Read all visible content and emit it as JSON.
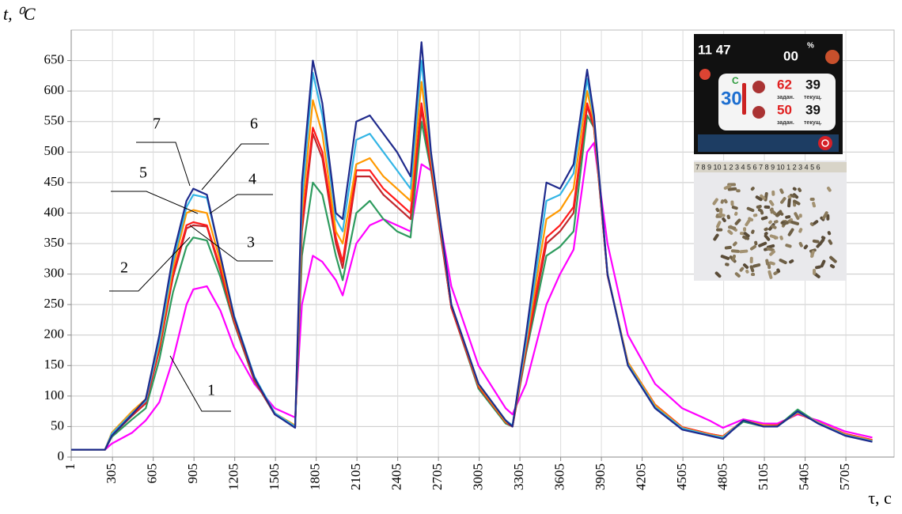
{
  "chart_data": {
    "type": "line",
    "y_label": "t, ⁰C",
    "x_label": "τ, c",
    "x": [
      1,
      250,
      300,
      450,
      550,
      650,
      750,
      850,
      900,
      1000,
      1100,
      1200,
      1350,
      1500,
      1650,
      1700,
      1780,
      1850,
      1950,
      2000,
      2100,
      2200,
      2300,
      2400,
      2500,
      2580,
      2650,
      2800,
      3000,
      3200,
      3250,
      3350,
      3500,
      3600,
      3700,
      3800,
      3850,
      3950,
      4100,
      4300,
      4500,
      4700,
      4800,
      4950,
      5100,
      5200,
      5350,
      5500,
      5700,
      5900
    ],
    "xlim": [
      1,
      6060
    ],
    "xticks": [
      1,
      305,
      605,
      905,
      1205,
      1505,
      1805,
      2105,
      2405,
      2705,
      3005,
      3305,
      3605,
      3905,
      4205,
      4505,
      4805,
      5105,
      5405,
      5705
    ],
    "ylim": [
      0,
      700
    ],
    "yticks": [
      0,
      50,
      100,
      150,
      200,
      250,
      300,
      350,
      400,
      450,
      500,
      550,
      600,
      650
    ],
    "grid": true,
    "series": [
      {
        "name": "1",
        "color": "#ff00ff",
        "values": [
          12,
          12,
          22,
          40,
          60,
          90,
          160,
          250,
          275,
          280,
          240,
          180,
          120,
          80,
          65,
          250,
          330,
          320,
          290,
          265,
          350,
          380,
          390,
          380,
          370,
          480,
          470,
          280,
          150,
          80,
          70,
          120,
          250,
          300,
          340,
          500,
          515,
          350,
          200,
          120,
          80,
          60,
          48,
          62,
          55,
          55,
          70,
          60,
          42,
          32
        ]
      },
      {
        "name": "2",
        "color": "#2e9b5e",
        "values": [
          12,
          12,
          33,
          62,
          80,
          160,
          270,
          345,
          360,
          355,
          295,
          220,
          125,
          70,
          50,
          330,
          450,
          430,
          330,
          290,
          400,
          420,
          390,
          370,
          360,
          550,
          470,
          245,
          112,
          55,
          50,
          170,
          330,
          345,
          370,
          560,
          540,
          300,
          152,
          84,
          47,
          36,
          32,
          58,
          50,
          50,
          78,
          56,
          37,
          27
        ]
      },
      {
        "name": "3",
        "color": "#c0272d",
        "values": [
          12,
          12,
          35,
          68,
          88,
          175,
          295,
          375,
          380,
          378,
          305,
          222,
          126,
          70,
          50,
          370,
          530,
          490,
          350,
          310,
          460,
          460,
          430,
          410,
          390,
          570,
          475,
          245,
          115,
          57,
          50,
          175,
          350,
          370,
          400,
          575,
          540,
          298,
          155,
          86,
          49,
          38,
          34,
          60,
          52,
          52,
          72,
          57,
          38,
          28
        ]
      },
      {
        "name": "4",
        "color": "#ff1a1a",
        "values": [
          12,
          12,
          36,
          70,
          90,
          180,
          300,
          380,
          385,
          380,
          310,
          225,
          128,
          70,
          50,
          380,
          540,
          500,
          360,
          320,
          470,
          470,
          440,
          420,
          400,
          580,
          480,
          245,
          116,
          57,
          50,
          180,
          360,
          380,
          410,
          580,
          545,
          298,
          155,
          86,
          49,
          38,
          34,
          60,
          52,
          52,
          72,
          57,
          38,
          28
        ]
      },
      {
        "name": "5",
        "color": "#ff9900",
        "values": [
          12,
          12,
          40,
          75,
          95,
          185,
          310,
          400,
          405,
          400,
          320,
          228,
          130,
          72,
          52,
          400,
          585,
          530,
          370,
          350,
          480,
          490,
          460,
          440,
          420,
          615,
          490,
          250,
          118,
          58,
          52,
          185,
          390,
          405,
          440,
          600,
          550,
          300,
          155,
          85,
          48,
          37,
          33,
          60,
          52,
          51,
          73,
          57,
          37,
          27
        ]
      },
      {
        "name": "6",
        "color": "#33b5e5",
        "values": [
          12,
          12,
          38,
          72,
          92,
          190,
          320,
          410,
          430,
          425,
          330,
          232,
          132,
          72,
          50,
          420,
          630,
          560,
          390,
          370,
          520,
          530,
          500,
          470,
          440,
          650,
          495,
          250,
          120,
          60,
          52,
          190,
          420,
          430,
          465,
          620,
          555,
          300,
          152,
          82,
          47,
          36,
          32,
          60,
          50,
          50,
          74,
          56,
          36,
          26
        ]
      },
      {
        "name": "7",
        "color": "#1f2a8c",
        "values": [
          12,
          12,
          35,
          70,
          95,
          200,
          330,
          420,
          440,
          430,
          330,
          230,
          130,
          70,
          48,
          450,
          650,
          580,
          400,
          390,
          550,
          560,
          530,
          500,
          460,
          680,
          500,
          250,
          120,
          60,
          50,
          200,
          450,
          440,
          480,
          635,
          560,
          300,
          150,
          80,
          45,
          35,
          30,
          60,
          50,
          50,
          75,
          55,
          35,
          25
        ]
      }
    ]
  },
  "inset": {
    "clock": "11 47",
    "percent": "00",
    "percent_sign": "%",
    "outside": "30",
    "unit": "C",
    "set1": "62",
    "cur1": "39",
    "set2": "50",
    "cur2": "39",
    "set_label": "задан.",
    "cur_label": "текущ.",
    "ruler": "7 8 9 10 1 2 3 4 5 6 7 8 9 10 1 2 3 4 5 6"
  }
}
